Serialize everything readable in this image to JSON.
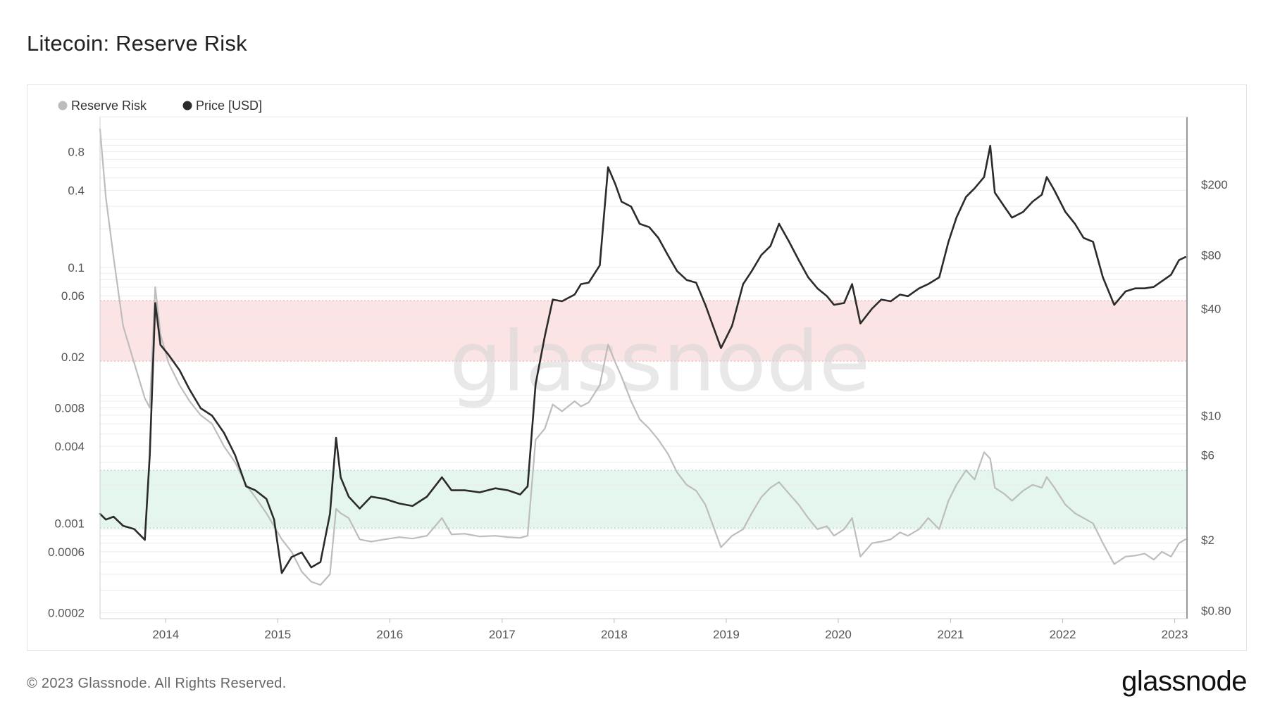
{
  "page": {
    "title": "Litecoin: Reserve Risk",
    "footer_copyright": "© 2023 Glassnode. All Rights Reserved.",
    "footer_logo": "glassnode",
    "watermark": "glassnode"
  },
  "chart_data": {
    "type": "line",
    "title": "Litecoin: Reserve Risk",
    "legend": {
      "placement": "top-left",
      "items": [
        {
          "label": "Reserve Risk",
          "color": "#bdbdbd"
        },
        {
          "label": "Price [USD]",
          "color": "#2b2b2b"
        }
      ]
    },
    "grid": true,
    "x_axis": {
      "type": "date",
      "range": [
        "2013-06-01",
        "2023-02-10"
      ],
      "ticks": [
        "2014",
        "2015",
        "2016",
        "2017",
        "2018",
        "2019",
        "2020",
        "2021",
        "2022",
        "2023"
      ]
    },
    "y_left": {
      "scale": "log",
      "range": [
        0.00018,
        1.5
      ],
      "ticks": [
        "0.8",
        "0.4",
        "0.1",
        "0.06",
        "0.02",
        "0.008",
        "0.004",
        "0.001",
        "0.0006",
        "0.0002"
      ]
    },
    "y_right": {
      "scale": "log",
      "range": [
        0.72,
        480
      ],
      "ticks": [
        "$200",
        "$80",
        "$40",
        "$10",
        "$6",
        "$2",
        "$0.80"
      ]
    },
    "bands": [
      {
        "axis": "left",
        "from": 0.0185,
        "to": 0.055,
        "color": "#fde4e4"
      },
      {
        "axis": "left",
        "from": 0.00092,
        "to": 0.0026,
        "color": "#e5f6ee"
      }
    ],
    "series": [
      {
        "name": "Reserve Risk",
        "axis": "left",
        "color": "#bdbdbd",
        "x": [
          "2013-06-01",
          "2013-06-20",
          "2013-07-15",
          "2013-08-15",
          "2013-09-20",
          "2013-10-25",
          "2013-11-10",
          "2013-11-28",
          "2013-12-15",
          "2014-01-10",
          "2014-02-15",
          "2014-03-20",
          "2014-04-25",
          "2014-06-01",
          "2014-07-10",
          "2014-08-15",
          "2014-09-20",
          "2014-10-20",
          "2014-11-25",
          "2014-12-20",
          "2015-01-14",
          "2015-02-15",
          "2015-03-20",
          "2015-04-20",
          "2015-05-20",
          "2015-06-20",
          "2015-07-10",
          "2015-07-25",
          "2015-08-20",
          "2015-09-25",
          "2015-11-01",
          "2015-12-15",
          "2016-02-01",
          "2016-03-15",
          "2016-05-01",
          "2016-06-19",
          "2016-07-20",
          "2016-09-01",
          "2016-10-20",
          "2016-12-10",
          "2017-01-20",
          "2017-03-01",
          "2017-03-25",
          "2017-04-20",
          "2017-05-20",
          "2017-06-15",
          "2017-07-15",
          "2017-08-25",
          "2017-09-15",
          "2017-10-10",
          "2017-11-15",
          "2017-12-12",
          "2018-01-05",
          "2018-01-25",
          "2018-02-25",
          "2018-03-25",
          "2018-04-25",
          "2018-05-25",
          "2018-06-25",
          "2018-07-25",
          "2018-08-25",
          "2018-09-25",
          "2018-10-25",
          "2018-12-15",
          "2019-01-20",
          "2019-02-25",
          "2019-03-25",
          "2019-04-25",
          "2019-05-25",
          "2019-06-22",
          "2019-07-25",
          "2019-08-25",
          "2019-09-25",
          "2019-10-25",
          "2019-11-25",
          "2019-12-18",
          "2020-01-20",
          "2020-02-15",
          "2020-03-13",
          "2020-04-20",
          "2020-05-20",
          "2020-06-20",
          "2020-07-20",
          "2020-08-15",
          "2020-09-20",
          "2020-10-20",
          "2020-11-25",
          "2020-12-25",
          "2021-01-20",
          "2021-02-20",
          "2021-03-20",
          "2021-04-20",
          "2021-05-10",
          "2021-05-25",
          "2021-06-25",
          "2021-07-20",
          "2021-08-25",
          "2021-09-25",
          "2021-10-25",
          "2021-11-10",
          "2021-12-05",
          "2022-01-10",
          "2022-02-10",
          "2022-03-10",
          "2022-04-10",
          "2022-05-12",
          "2022-06-18",
          "2022-07-25",
          "2022-08-25",
          "2022-09-25",
          "2022-10-25",
          "2022-11-20",
          "2022-12-20",
          "2023-01-15",
          "2023-02-05"
        ],
        "values": [
          1.2,
          0.35,
          0.12,
          0.035,
          0.018,
          0.0095,
          0.008,
          0.07,
          0.03,
          0.018,
          0.012,
          0.009,
          0.007,
          0.006,
          0.004,
          0.003,
          0.002,
          0.0016,
          0.0012,
          0.00095,
          0.00075,
          0.0006,
          0.00042,
          0.00035,
          0.00033,
          0.0004,
          0.0013,
          0.0012,
          0.0011,
          0.00075,
          0.00072,
          0.00075,
          0.00078,
          0.00076,
          0.0008,
          0.0011,
          0.00082,
          0.00083,
          0.00079,
          0.0008,
          0.00078,
          0.00077,
          0.0008,
          0.0045,
          0.0055,
          0.0085,
          0.0075,
          0.009,
          0.0082,
          0.0088,
          0.012,
          0.025,
          0.018,
          0.014,
          0.009,
          0.0065,
          0.0055,
          0.0045,
          0.0035,
          0.0025,
          0.002,
          0.0018,
          0.0014,
          0.00065,
          0.0008,
          0.0009,
          0.0012,
          0.0016,
          0.0019,
          0.0021,
          0.0017,
          0.0014,
          0.0011,
          0.0009,
          0.00095,
          0.0008,
          0.0009,
          0.0011,
          0.00055,
          0.0007,
          0.00072,
          0.00075,
          0.00085,
          0.0008,
          0.0009,
          0.0011,
          0.0009,
          0.0015,
          0.002,
          0.0026,
          0.0022,
          0.0036,
          0.0032,
          0.0019,
          0.0017,
          0.0015,
          0.0018,
          0.002,
          0.0019,
          0.0023,
          0.0019,
          0.0014,
          0.0012,
          0.0011,
          0.001,
          0.0007,
          0.00048,
          0.00055,
          0.00056,
          0.00058,
          0.00052,
          0.0006,
          0.00055,
          0.0007,
          0.00075
        ]
      },
      {
        "name": "Price [USD]",
        "axis": "right",
        "color": "#2b2b2b",
        "x": [
          "2013-06-01",
          "2013-06-20",
          "2013-07-15",
          "2013-08-15",
          "2013-09-20",
          "2013-10-25",
          "2013-11-10",
          "2013-11-28",
          "2013-12-15",
          "2014-01-10",
          "2014-02-15",
          "2014-03-20",
          "2014-04-25",
          "2014-06-01",
          "2014-07-10",
          "2014-08-15",
          "2014-09-20",
          "2014-10-20",
          "2014-11-25",
          "2014-12-20",
          "2015-01-14",
          "2015-02-15",
          "2015-03-20",
          "2015-04-20",
          "2015-05-20",
          "2015-06-20",
          "2015-07-10",
          "2015-07-25",
          "2015-08-20",
          "2015-09-25",
          "2015-11-01",
          "2015-12-15",
          "2016-02-01",
          "2016-03-15",
          "2016-05-01",
          "2016-06-19",
          "2016-07-20",
          "2016-09-01",
          "2016-10-20",
          "2016-12-10",
          "2017-01-20",
          "2017-03-01",
          "2017-03-25",
          "2017-04-20",
          "2017-05-20",
          "2017-06-15",
          "2017-07-15",
          "2017-08-25",
          "2017-09-15",
          "2017-10-10",
          "2017-11-15",
          "2017-12-12",
          "2018-01-05",
          "2018-01-25",
          "2018-02-25",
          "2018-03-25",
          "2018-04-25",
          "2018-05-25",
          "2018-06-25",
          "2018-07-25",
          "2018-08-25",
          "2018-09-25",
          "2018-10-25",
          "2018-12-15",
          "2019-01-20",
          "2019-02-25",
          "2019-03-25",
          "2019-04-25",
          "2019-05-25",
          "2019-06-22",
          "2019-07-25",
          "2019-08-25",
          "2019-09-25",
          "2019-10-25",
          "2019-11-25",
          "2019-12-18",
          "2020-01-20",
          "2020-02-15",
          "2020-03-13",
          "2020-04-20",
          "2020-05-20",
          "2020-06-20",
          "2020-07-20",
          "2020-08-15",
          "2020-09-20",
          "2020-10-20",
          "2020-11-25",
          "2020-12-25",
          "2021-01-20",
          "2021-02-20",
          "2021-03-20",
          "2021-04-20",
          "2021-05-10",
          "2021-05-25",
          "2021-06-25",
          "2021-07-20",
          "2021-08-25",
          "2021-09-25",
          "2021-10-25",
          "2021-11-10",
          "2021-12-05",
          "2022-01-10",
          "2022-02-10",
          "2022-03-10",
          "2022-04-10",
          "2022-05-12",
          "2022-06-18",
          "2022-07-25",
          "2022-08-25",
          "2022-09-25",
          "2022-10-25",
          "2022-11-20",
          "2022-12-20",
          "2023-01-15",
          "2023-02-05"
        ],
        "values": [
          2.8,
          2.6,
          2.7,
          2.4,
          2.3,
          2.0,
          6.0,
          43,
          25,
          22,
          18,
          14,
          11,
          10,
          8,
          6,
          4,
          3.8,
          3.4,
          2.6,
          1.3,
          1.6,
          1.7,
          1.4,
          1.5,
          2.8,
          7.5,
          4.5,
          3.5,
          3.0,
          3.5,
          3.4,
          3.2,
          3.1,
          3.5,
          4.5,
          3.8,
          3.8,
          3.7,
          3.9,
          3.8,
          3.6,
          4.0,
          15,
          28,
          45,
          44,
          48,
          55,
          56,
          70,
          250,
          200,
          160,
          150,
          120,
          115,
          100,
          80,
          65,
          58,
          56,
          42,
          24,
          32,
          55,
          65,
          80,
          90,
          120,
          95,
          75,
          60,
          52,
          47,
          42,
          43,
          55,
          33,
          40,
          45,
          44,
          48,
          47,
          52,
          55,
          60,
          95,
          130,
          170,
          190,
          220,
          330,
          180,
          150,
          130,
          140,
          160,
          175,
          220,
          185,
          140,
          120,
          100,
          95,
          60,
          42,
          50,
          52,
          52,
          53,
          57,
          62,
          75,
          78
        ]
      }
    ]
  }
}
